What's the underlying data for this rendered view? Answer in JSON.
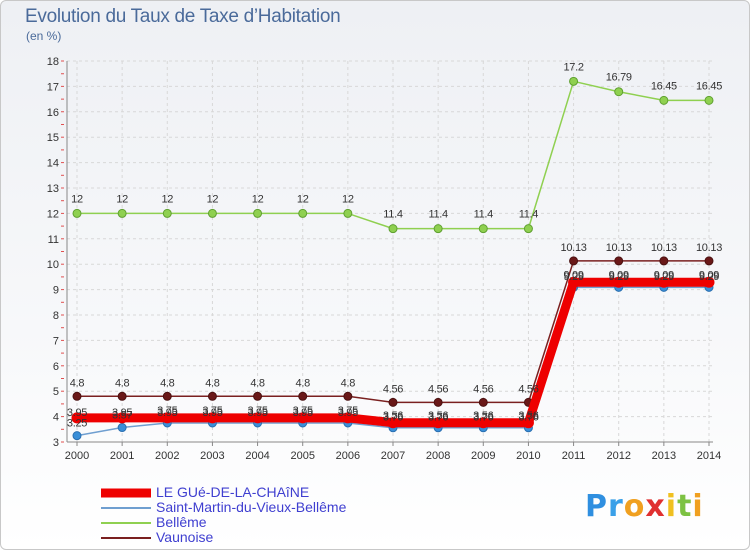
{
  "title": "Evolution du Taux de Taxe d’Habitation",
  "unit_label": "(en %)",
  "logo": {
    "text": "ProXiti",
    "letters": [
      "P",
      "r",
      "o",
      "x",
      "i",
      "t",
      "i"
    ],
    "colors": [
      "#2f8fe0",
      "#3aa0e8",
      "#f0a020",
      "#e03030",
      "#f0c020",
      "#7dc243",
      "#f0a020"
    ]
  },
  "chart_data": {
    "type": "line",
    "title": "Evolution du Taux de Taxe d’Habitation",
    "ylabel": "(en %)",
    "xlabel": "",
    "x": [
      "2000",
      "2001",
      "2002",
      "2003",
      "2004",
      "2005",
      "2006",
      "2007",
      "2008",
      "2009",
      "2010",
      "2011",
      "2012",
      "2013",
      "2014"
    ],
    "ylim": [
      3,
      18
    ],
    "yticks": [
      "3",
      "4",
      "5",
      "6",
      "7",
      "8",
      "9",
      "10",
      "11",
      "12",
      "13",
      "14",
      "15",
      "16",
      "17",
      "18"
    ],
    "grid": true,
    "legend_position": "bottom-left",
    "series": [
      {
        "name": "LE GUé-DE-LA-CHAîNE",
        "color": "#ee0000",
        "values": [
          3.95,
          3.95,
          3.95,
          3.95,
          3.95,
          3.95,
          3.95,
          3.76,
          3.76,
          3.76,
          3.76,
          9.29,
          9.29,
          9.29,
          9.29
        ],
        "labels": [
          "3.95",
          "3.95",
          "3.95",
          "3.95",
          "3.95",
          "3.95",
          "3.95",
          "3.76",
          "3.76",
          "3.76",
          "3.76",
          "9.29",
          "9.29",
          "9.29",
          "9.29"
        ]
      },
      {
        "name": "Saint-Martin-du-Vieux-Bellême",
        "color": "#6f9fd0",
        "values": [
          3.25,
          3.57,
          3.75,
          3.75,
          3.75,
          3.75,
          3.75,
          3.56,
          3.56,
          3.56,
          3.56,
          9.09,
          9.09,
          9.09,
          9.09
        ],
        "labels": [
          "3.25",
          "3.57",
          "3.75",
          "3.75",
          "3.75",
          "3.75",
          "3.75",
          "3.56",
          "3.56",
          "3.56",
          "3.56",
          "9.09",
          "9.09",
          "9.09",
          "9.09"
        ]
      },
      {
        "name": "Bellême",
        "color": "#8fd050",
        "values": [
          12,
          12,
          12,
          12,
          12,
          12,
          12,
          11.4,
          11.4,
          11.4,
          11.4,
          17.2,
          16.79,
          16.45,
          16.45
        ],
        "labels": [
          "12",
          "12",
          "12",
          "12",
          "12",
          "12",
          "12",
          "11.4",
          "11.4",
          "11.4",
          "11.4",
          "17.2",
          "16.79",
          "16.45",
          "16.45"
        ]
      },
      {
        "name": "Vaunoise",
        "color": "#7a2020",
        "values": [
          4.8,
          4.8,
          4.8,
          4.8,
          4.8,
          4.8,
          4.8,
          4.56,
          4.56,
          4.56,
          4.56,
          10.13,
          10.13,
          10.13,
          10.13
        ],
        "labels": [
          "4.8",
          "4.8",
          "4.8",
          "4.8",
          "4.8",
          "4.8",
          "4.8",
          "4.56",
          "4.56",
          "4.56",
          "4.56",
          "10.13",
          "10.13",
          "10.13",
          "10.13"
        ]
      }
    ]
  }
}
